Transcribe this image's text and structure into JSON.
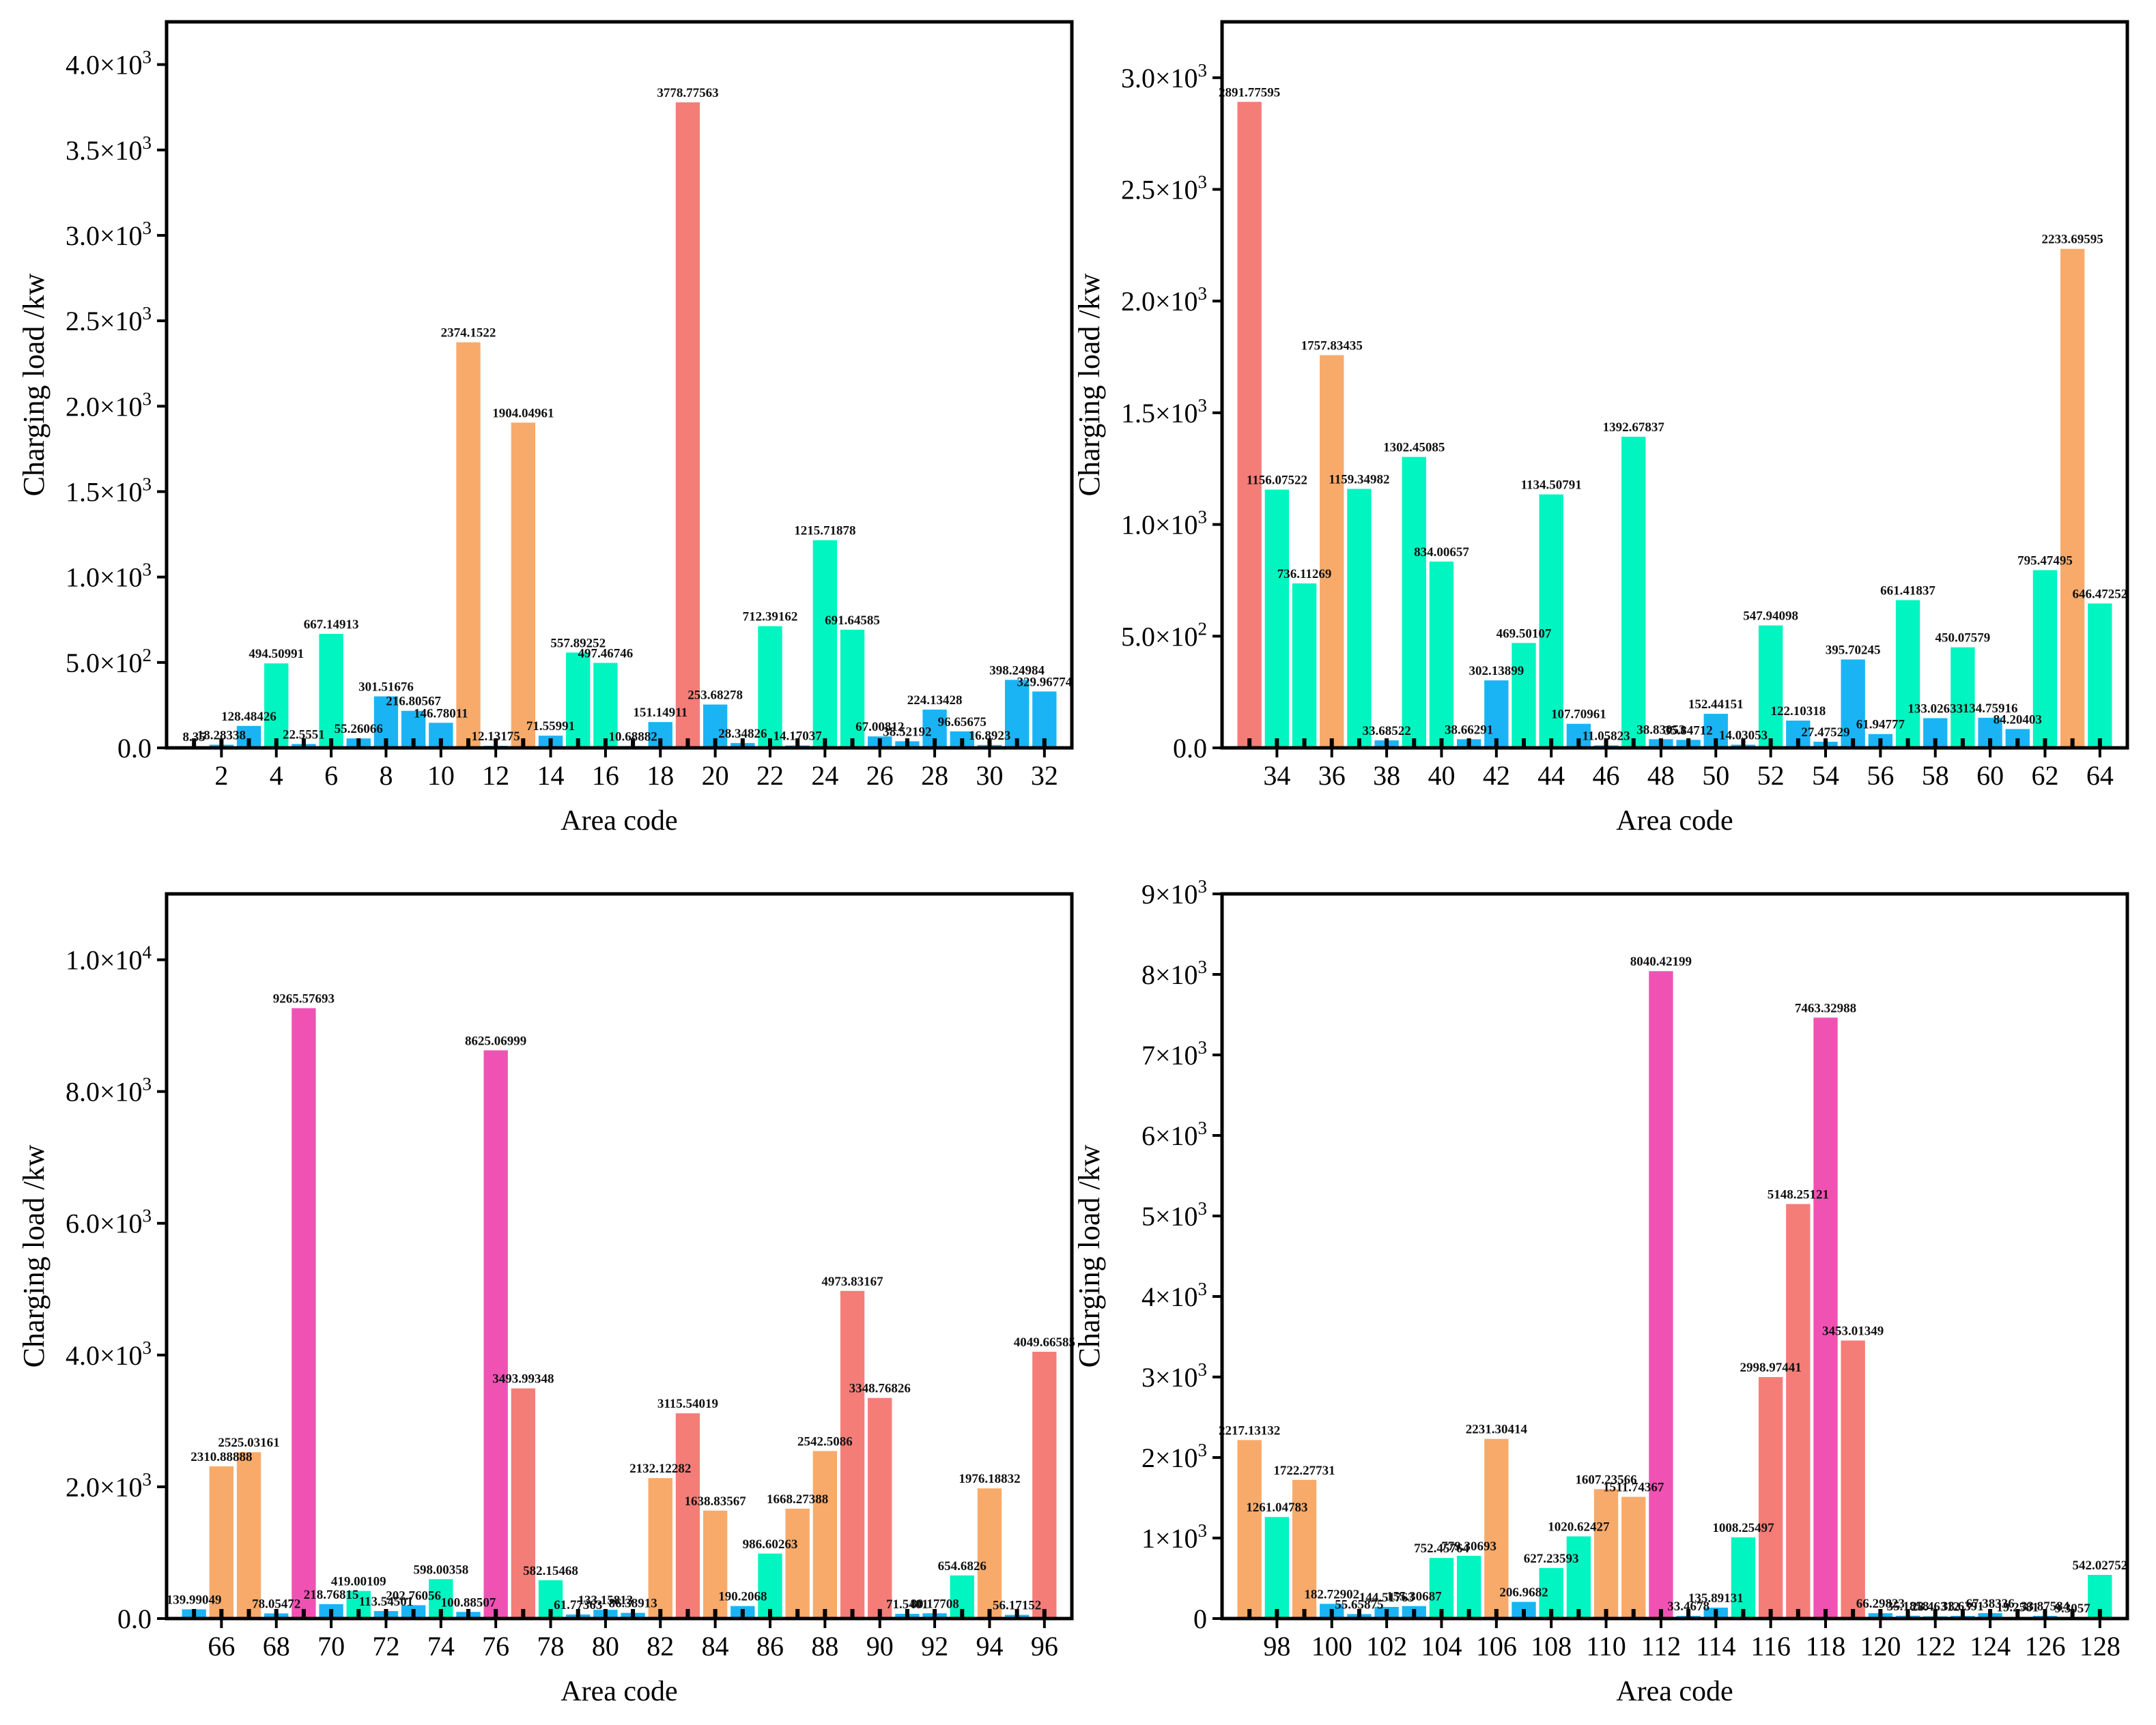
{
  "colors": {
    "cyan": "#1AB4F5",
    "green": "#00F5C0",
    "orange": "#F8AA6A",
    "red": "#F47D78",
    "magenta": "#F052B4",
    "axis": "#000000",
    "background": "#FFFFFF"
  },
  "chart_data": [
    {
      "type": "bar",
      "panel": "top-left",
      "xlabel": "Area code",
      "ylabel": "Charging load /kw",
      "xlim": [
        0,
        33
      ],
      "ylim": [
        0,
        4250
      ],
      "yticks": [
        {
          "value": 0,
          "label": "0.0"
        },
        {
          "value": 500,
          "label": "5.0×10",
          "exp": "2"
        },
        {
          "value": 1000,
          "label": "1.0×10",
          "exp": "3"
        },
        {
          "value": 1500,
          "label": "1.5×10",
          "exp": "3"
        },
        {
          "value": 2000,
          "label": "2.0×10",
          "exp": "3"
        },
        {
          "value": 2500,
          "label": "2.5×10",
          "exp": "3"
        },
        {
          "value": 3000,
          "label": "3.0×10",
          "exp": "3"
        },
        {
          "value": 3500,
          "label": "3.5×10",
          "exp": "3"
        },
        {
          "value": 4000,
          "label": "4.0×10",
          "exp": "3"
        }
      ],
      "xticks": [
        2,
        4,
        6,
        8,
        10,
        12,
        14,
        16,
        18,
        20,
        22,
        24,
        26,
        28,
        30,
        32
      ],
      "categories": [
        1,
        2,
        3,
        4,
        5,
        6,
        7,
        8,
        9,
        10,
        11,
        12,
        13,
        14,
        15,
        16,
        17,
        18,
        19,
        20,
        21,
        22,
        23,
        24,
        25,
        26,
        27,
        28,
        29,
        30,
        31,
        32
      ],
      "values": [
        8.35,
        18.28338,
        128.48426,
        494.50991,
        22.5551,
        667.14913,
        55.26066,
        301.51676,
        216.80567,
        146.78011,
        2374.1522,
        12.13175,
        1904.04961,
        71.55991,
        557.89252,
        497.46746,
        10.68882,
        151.14911,
        3778.77563,
        253.68278,
        28.34826,
        712.39162,
        14.17037,
        1215.71878,
        691.64585,
        67.00812,
        38.52192,
        224.13428,
        96.65675,
        16.8923,
        398.24984,
        329.96774
      ],
      "data_labels": [
        "8.35",
        "18.28338",
        "128.48426",
        "494.50991",
        "22.5551",
        "667.14913",
        "55.26066",
        "301.51676",
        "216.80567",
        "146.78011",
        "2374.1522",
        "12.13175",
        "1904.04961",
        "71.55991",
        "557.89252",
        "497.46746",
        "10.68882",
        "151.14911",
        "3778.77563",
        "253.68278",
        "28.34826",
        "712.39162",
        "14.17037",
        "1215.71878",
        "691.64585",
        "67.00812",
        "38.52192",
        "224.13428",
        "96.65675",
        "16.8923",
        "398.24984",
        "329.96774"
      ]
    },
    {
      "type": "bar",
      "panel": "top-right",
      "xlabel": "Area code",
      "ylabel": "Charging load /kw",
      "xlim": [
        32,
        65
      ],
      "ylim": [
        0,
        3250
      ],
      "yticks": [
        {
          "value": 0,
          "label": "0.0"
        },
        {
          "value": 500,
          "label": "5.0×10",
          "exp": "2"
        },
        {
          "value": 1000,
          "label": "1.0×10",
          "exp": "3"
        },
        {
          "value": 1500,
          "label": "1.5×10",
          "exp": "3"
        },
        {
          "value": 2000,
          "label": "2.0×10",
          "exp": "3"
        },
        {
          "value": 2500,
          "label": "2.5×10",
          "exp": "3"
        },
        {
          "value": 3000,
          "label": "3.0×10",
          "exp": "3"
        }
      ],
      "xticks": [
        34,
        36,
        38,
        40,
        42,
        44,
        46,
        48,
        50,
        52,
        54,
        56,
        58,
        60,
        62,
        64
      ],
      "categories": [
        33,
        34,
        35,
        36,
        37,
        38,
        39,
        40,
        41,
        42,
        43,
        44,
        45,
        46,
        47,
        48,
        49,
        50,
        51,
        52,
        53,
        54,
        55,
        56,
        57,
        58,
        59,
        60,
        61,
        62,
        63,
        64
      ],
      "values": [
        2891.77595,
        1156.07522,
        736.11269,
        1757.83435,
        1159.34982,
        33.68522,
        1302.45085,
        834.00657,
        38.66291,
        302.13899,
        469.50107,
        1134.50791,
        107.70961,
        11.05823,
        1392.67837,
        38.83053,
        35.84712,
        152.44151,
        14.03053,
        547.94098,
        122.10318,
        27.47529,
        395.70245,
        61.94777,
        661.41837,
        133.02633,
        450.07579,
        134.75916,
        84.20403,
        795.47495,
        2233.69595,
        646.47252
      ],
      "data_labels": [
        "2891.77595",
        "1156.07522",
        "736.11269",
        "1757.83435",
        "1159.34982",
        "33.68522",
        "1302.45085",
        "834.00657",
        "38.66291",
        "302.13899",
        "469.50107",
        "1134.50791",
        "107.70961",
        "11.05823",
        "1392.67837",
        "38.83053",
        "35.84712",
        "152.44151",
        "14.03053",
        "547.94098",
        "122.10318",
        "27.47529",
        "395.70245",
        "61.94777",
        "661.41837",
        "133.02633",
        "450.07579",
        "134.75916",
        "84.20403",
        "795.47495",
        "2233.69595",
        "646.47252"
      ]
    },
    {
      "type": "bar",
      "panel": "bottom-left",
      "xlabel": "Area code",
      "ylabel": "Charging load /kw",
      "xlim": [
        64,
        97
      ],
      "ylim": [
        0,
        11000
      ],
      "yticks": [
        {
          "value": 0,
          "label": "0.0"
        },
        {
          "value": 2000,
          "label": "2.0×10",
          "exp": "3"
        },
        {
          "value": 4000,
          "label": "4.0×10",
          "exp": "3"
        },
        {
          "value": 6000,
          "label": "6.0×10",
          "exp": "3"
        },
        {
          "value": 8000,
          "label": "8.0×10",
          "exp": "3"
        },
        {
          "value": 10000,
          "label": "1.0×10",
          "exp": "4"
        }
      ],
      "xticks": [
        66,
        68,
        70,
        72,
        74,
        76,
        78,
        80,
        82,
        84,
        86,
        88,
        90,
        92,
        94,
        96
      ],
      "categories": [
        65,
        66,
        67,
        68,
        69,
        70,
        71,
        72,
        73,
        74,
        75,
        76,
        77,
        78,
        79,
        80,
        81,
        82,
        83,
        84,
        85,
        86,
        87,
        88,
        89,
        90,
        91,
        92,
        93,
        94,
        95,
        96
      ],
      "values": [
        139.99049,
        2310.88888,
        2525.03161,
        78.05472,
        9265.57693,
        218.76815,
        419.00109,
        113.54501,
        202.76056,
        598.00358,
        100.88507,
        8625.06999,
        3493.99348,
        582.15468,
        61.77363,
        133.15813,
        86.38913,
        2132.12282,
        3115.54019,
        1638.83567,
        190.2068,
        986.60263,
        1668.27388,
        2542.5086,
        4973.83167,
        3348.76826,
        71.5401,
        80.17708,
        654.6826,
        1976.18832,
        56.17152,
        4049.66585
      ],
      "data_labels": [
        "139.99049",
        "2310.88888",
        "2525.03161",
        "78.05472",
        "9265.57693",
        "218.76815",
        "419.00109",
        "113.54501",
        "202.76056",
        "598.00358",
        "100.88507",
        "8625.06999",
        "3493.99348",
        "582.15468",
        "61.77363",
        "133.15813",
        "86.38913",
        "2132.12282",
        "3115.54019",
        "1638.83567",
        "190.2068",
        "986.60263",
        "1668.27388",
        "2542.5086",
        "4973.83167",
        "3348.76826",
        "71.5401",
        "80.17708",
        "654.6826",
        "1976.18832",
        "56.17152",
        "4049.66585"
      ]
    },
    {
      "type": "bar",
      "panel": "bottom-right",
      "xlabel": "Area code",
      "ylabel": "Charging load /kw",
      "xlim": [
        96,
        129
      ],
      "ylim": [
        0,
        9000
      ],
      "yticks": [
        {
          "value": 0,
          "label": "0"
        },
        {
          "value": 1000,
          "label": "1×10",
          "exp": "3"
        },
        {
          "value": 2000,
          "label": "2×10",
          "exp": "3"
        },
        {
          "value": 3000,
          "label": "3×10",
          "exp": "3"
        },
        {
          "value": 4000,
          "label": "4×10",
          "exp": "3"
        },
        {
          "value": 5000,
          "label": "5×10",
          "exp": "3"
        },
        {
          "value": 6000,
          "label": "6×10",
          "exp": "3"
        },
        {
          "value": 7000,
          "label": "7×10",
          "exp": "3"
        },
        {
          "value": 8000,
          "label": "8×10",
          "exp": "3"
        },
        {
          "value": 9000,
          "label": "9×10",
          "exp": "3"
        }
      ],
      "xticks": [
        98,
        100,
        102,
        104,
        106,
        108,
        110,
        112,
        114,
        116,
        118,
        120,
        122,
        124,
        126,
        128
      ],
      "categories": [
        97,
        98,
        99,
        100,
        101,
        102,
        103,
        104,
        105,
        106,
        107,
        108,
        109,
        110,
        111,
        112,
        113,
        114,
        115,
        116,
        117,
        118,
        119,
        120,
        121,
        122,
        123,
        124,
        125,
        126,
        127,
        128
      ],
      "values": [
        2217.13132,
        1261.04783,
        1722.27731,
        182.72902,
        55.65875,
        144.51763,
        155.30687,
        752.45764,
        779.30693,
        2231.30414,
        206.9682,
        627.23593,
        1020.62427,
        1607.23566,
        1511.74367,
        8040.42199,
        33.4678,
        135.89131,
        1008.25497,
        2998.97441,
        5148.25121,
        7463.32988,
        3453.01349,
        66.29823,
        35.1858,
        28.46312,
        33.6391,
        67.38336,
        19.2581,
        33.87584,
        9.3057,
        542.02752
      ],
      "data_labels": [
        "2217.13132",
        "1261.04783",
        "1722.27731",
        "182.72902",
        "55.65875",
        "144.51763",
        "155.30687",
        "752.45764",
        "779.30693",
        "2231.30414",
        "206.9682",
        "627.23593",
        "1020.62427",
        "1607.23566",
        "1511.74367",
        "8040.42199",
        "33.4678",
        "135.89131",
        "1008.25497",
        "2998.97441",
        "5148.25121",
        "7463.32988",
        "3453.01349",
        "66.29823",
        "35.1858",
        "28.46312",
        "33.6391",
        "67.38336",
        "19.2581",
        "33.87584",
        "9.3057",
        "542.02752"
      ]
    }
  ]
}
